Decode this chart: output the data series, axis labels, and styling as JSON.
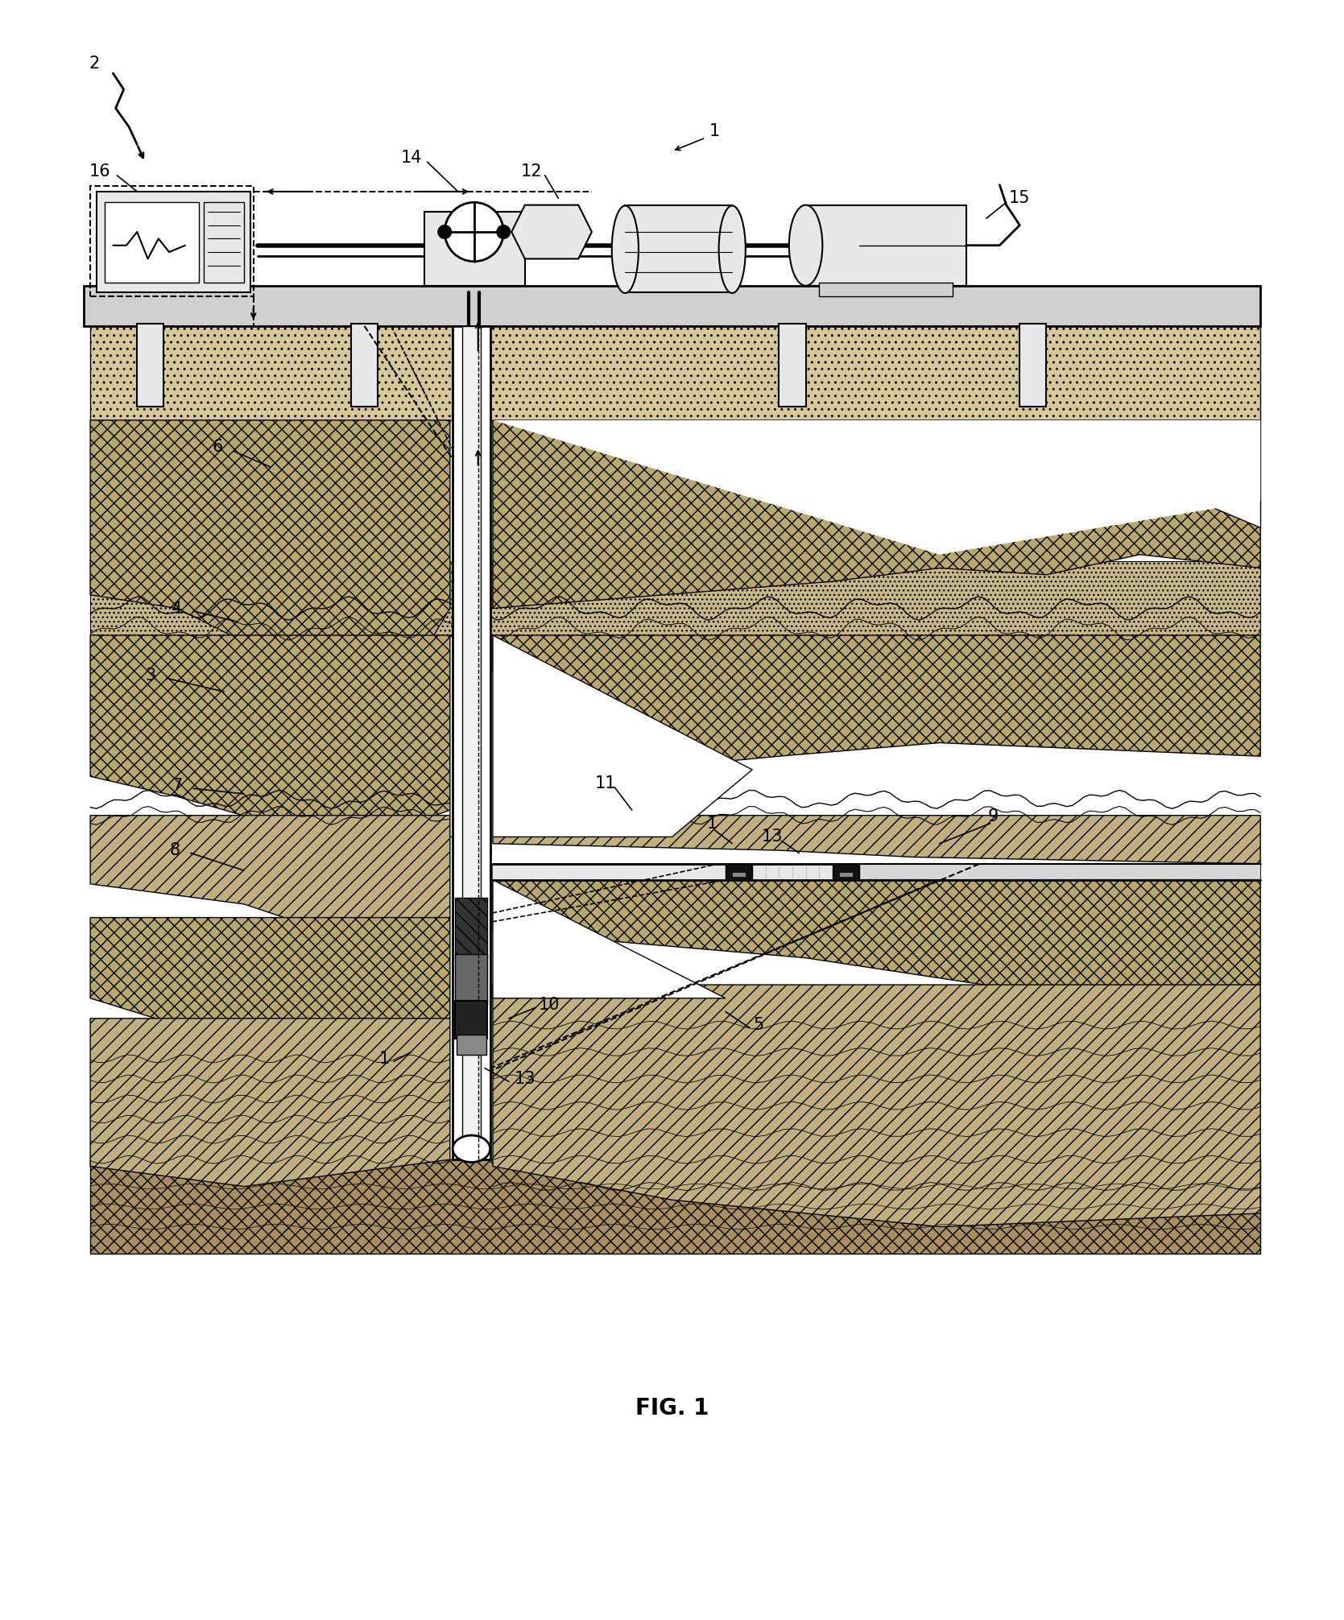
{
  "title": "FIG. 1",
  "title_fontsize": 20,
  "title_fontweight": "bold",
  "background_color": "#ffffff",
  "fig_width": 16.69,
  "fig_height": 20.12,
  "dpi": 100
}
